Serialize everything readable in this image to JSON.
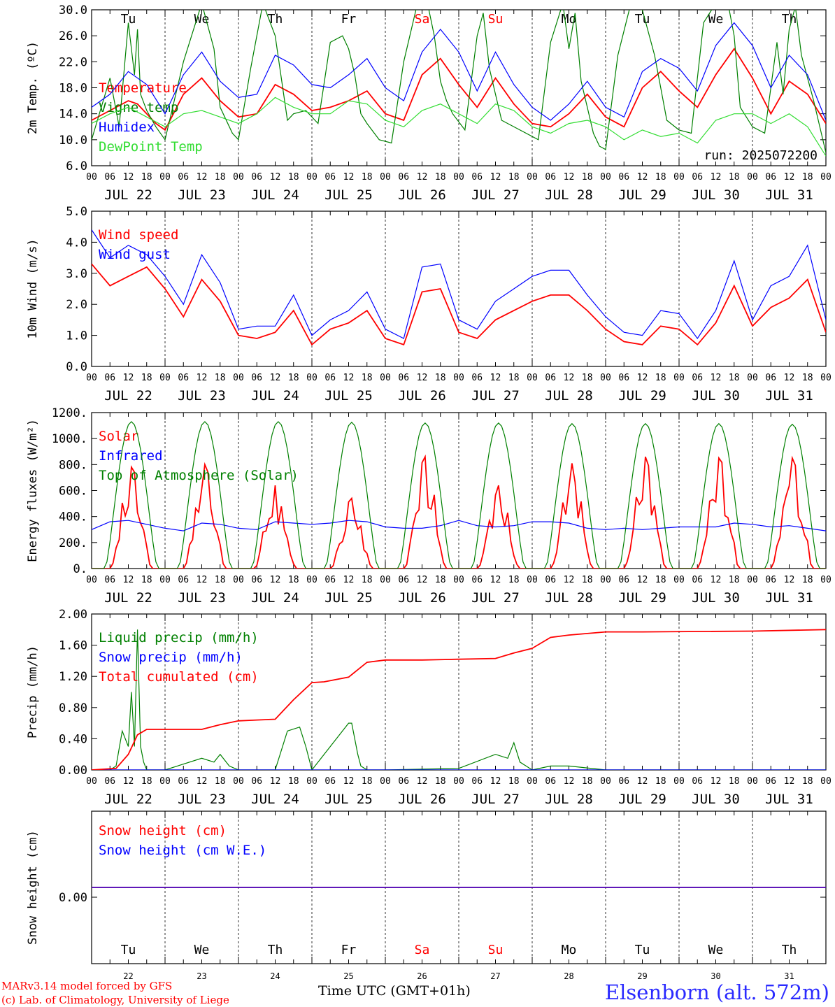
{
  "footer": {
    "model": "MARv3.14 model forced by GFS",
    "copyright": "(c) Lab. of Climatology, University of Liege",
    "time_label": "Time UTC (GMT+01h)",
    "station": "Elsenborn (alt. 572m)"
  },
  "colors": {
    "red": "#ff0000",
    "green": "#008000",
    "blue": "#0000ff",
    "lightgreen": "#33dd33",
    "weekend": "#ff0000",
    "weekday": "#000000"
  },
  "days": {
    "abbr": [
      "Tu",
      "We",
      "Th",
      "Fr",
      "Sa",
      "Su",
      "Mo",
      "Tu",
      "We",
      "Th"
    ],
    "weekend": [
      false,
      false,
      false,
      false,
      true,
      true,
      false,
      false,
      false,
      false
    ],
    "dates": [
      "JUL 22",
      "JUL 23",
      "JUL 24",
      "JUL 25",
      "JUL 26",
      "JUL 27",
      "JUL 28",
      "JUL 29",
      "JUL 30",
      "JUL 31"
    ],
    "day_numbers": [
      "22",
      "23",
      "24",
      "25",
      "26",
      "27",
      "28",
      "29",
      "30",
      "31"
    ],
    "hour_ticks": [
      "00",
      "06",
      "12",
      "18"
    ],
    "final_tick": "00"
  },
  "chart_data": [
    {
      "type": "line",
      "ylabel": "2m Temp. (ºC)",
      "ylim": [
        6.0,
        30.0
      ],
      "yticks": [
        "6.0",
        "10.0",
        "14.0",
        "18.0",
        "22.0",
        "26.0",
        "30.0"
      ],
      "annotation": "run: 2025072200",
      "x_unit": "hours since JUL 22 00 UTC",
      "series": [
        {
          "name": "Temperature",
          "color": "red",
          "x": [
            0,
            12,
            15,
            21,
            24,
            30,
            36,
            42,
            48,
            54,
            60,
            66,
            72,
            78,
            84,
            90,
            96,
            102,
            108,
            114,
            120,
            126,
            132,
            138,
            144,
            150,
            156,
            162,
            168,
            174,
            180,
            186,
            192,
            198,
            204,
            210,
            216,
            222,
            228,
            234,
            240
          ],
          "y": [
            13.0,
            16.0,
            15.5,
            12.5,
            11.5,
            17.0,
            19.5,
            16.0,
            13.5,
            14.0,
            18.5,
            17.0,
            14.5,
            15.0,
            16.0,
            17.5,
            14.0,
            13.0,
            20.0,
            22.5,
            18.5,
            15.0,
            19.5,
            15.5,
            12.5,
            12.0,
            14.0,
            17.0,
            13.5,
            12.0,
            18.0,
            20.5,
            17.5,
            15.0,
            20.0,
            24.0,
            19.5,
            14.0,
            19.0,
            17.0,
            12.5
          ]
        },
        {
          "name": "Vigne temp",
          "color": "green",
          "x": [
            0,
            6,
            9,
            12,
            14,
            15,
            16,
            18,
            21,
            24,
            30,
            36,
            40,
            42,
            46,
            48,
            52,
            56,
            60,
            64,
            66,
            70,
            74,
            78,
            82,
            84,
            86,
            88,
            90,
            94,
            98,
            102,
            106,
            110,
            112,
            114,
            116,
            118,
            122,
            126,
            128,
            130,
            132,
            134,
            136,
            140,
            146,
            150,
            154,
            156,
            158,
            160,
            162,
            164,
            166,
            168,
            172,
            176,
            180,
            184,
            186,
            188,
            192,
            196,
            200,
            204,
            208,
            210,
            212,
            216,
            220,
            224,
            226,
            228,
            230,
            232,
            236,
            240
          ],
          "y": [
            10.0,
            19.5,
            12.0,
            28.0,
            20.0,
            27.0,
            17.0,
            14.5,
            12.0,
            10.0,
            22.0,
            31.0,
            24.0,
            15.0,
            11.0,
            10.0,
            21.0,
            31.0,
            26.0,
            13.0,
            14.0,
            14.5,
            12.5,
            25.0,
            26.0,
            24.0,
            20.0,
            14.0,
            12.5,
            10.0,
            9.5,
            22.0,
            30.0,
            30.5,
            26.0,
            19.0,
            16.0,
            14.0,
            11.5,
            26.0,
            29.5,
            21.0,
            17.0,
            13.0,
            12.5,
            11.5,
            10.0,
            25.0,
            31.0,
            24.0,
            29.5,
            19.0,
            15.0,
            11.0,
            9.0,
            8.5,
            23.0,
            30.5,
            30.0,
            23.0,
            18.0,
            13.0,
            11.5,
            11.0,
            28.0,
            31.0,
            31.0,
            26.0,
            15.0,
            12.0,
            11.0,
            25.0,
            17.0,
            27.0,
            30.5,
            23.0,
            16.0,
            8.0
          ]
        },
        {
          "name": "Humidex",
          "color": "blue",
          "x": [
            0,
            6,
            12,
            18,
            24,
            30,
            36,
            42,
            48,
            54,
            60,
            66,
            72,
            78,
            84,
            90,
            96,
            102,
            108,
            114,
            120,
            126,
            132,
            138,
            144,
            150,
            156,
            162,
            168,
            174,
            180,
            186,
            192,
            198,
            204,
            210,
            216,
            222,
            228,
            234,
            240
          ],
          "y": [
            15.0,
            17.0,
            20.5,
            18.5,
            14.0,
            20.0,
            23.5,
            19.0,
            16.5,
            17.0,
            23.0,
            21.5,
            18.5,
            18.0,
            20.0,
            22.5,
            18.0,
            16.0,
            23.5,
            27.0,
            23.5,
            17.5,
            23.5,
            18.5,
            15.0,
            13.0,
            15.5,
            19.0,
            15.0,
            13.5,
            20.5,
            22.5,
            21.0,
            17.5,
            24.5,
            28.0,
            24.5,
            18.0,
            23.0,
            20.0,
            13.0
          ]
        },
        {
          "name": "DewPoint Temp",
          "color": "lightgreen",
          "x": [
            0,
            6,
            12,
            18,
            24,
            30,
            36,
            42,
            48,
            54,
            60,
            66,
            72,
            78,
            84,
            90,
            96,
            102,
            108,
            114,
            120,
            126,
            132,
            138,
            144,
            150,
            156,
            162,
            168,
            174,
            180,
            186,
            192,
            198,
            204,
            210,
            216,
            222,
            228,
            234,
            240
          ],
          "y": [
            12.5,
            14.0,
            15.0,
            13.5,
            12.0,
            14.0,
            14.5,
            13.5,
            12.5,
            14.0,
            16.5,
            15.0,
            14.0,
            14.0,
            16.0,
            15.5,
            13.0,
            12.0,
            14.5,
            15.5,
            14.0,
            12.5,
            15.5,
            14.5,
            12.0,
            11.0,
            12.5,
            13.0,
            12.0,
            10.0,
            11.5,
            10.5,
            11.0,
            9.5,
            13.0,
            14.0,
            14.0,
            12.5,
            14.0,
            12.0,
            7.5
          ]
        }
      ]
    },
    {
      "type": "line",
      "ylabel": "10m Wind (m/s)",
      "ylim": [
        0.0,
        5.0
      ],
      "yticks": [
        "0.0",
        "1.0",
        "2.0",
        "3.0",
        "4.0",
        "5.0"
      ],
      "x_unit": "hours since JUL 22 00 UTC",
      "series": [
        {
          "name": "Wind speed",
          "color": "red",
          "x": [
            0,
            6,
            12,
            18,
            24,
            30,
            36,
            42,
            48,
            54,
            60,
            66,
            72,
            78,
            84,
            90,
            96,
            102,
            108,
            114,
            120,
            126,
            132,
            138,
            144,
            150,
            156,
            162,
            168,
            174,
            180,
            186,
            192,
            198,
            204,
            210,
            216,
            222,
            228,
            234,
            240
          ],
          "y": [
            3.3,
            2.6,
            2.9,
            3.2,
            2.5,
            1.6,
            2.8,
            2.1,
            1.0,
            0.9,
            1.1,
            1.8,
            0.7,
            1.2,
            1.4,
            1.8,
            0.9,
            0.7,
            2.4,
            2.5,
            1.1,
            0.9,
            1.5,
            1.8,
            2.1,
            2.3,
            2.3,
            1.8,
            1.2,
            0.8,
            0.7,
            1.3,
            1.2,
            0.7,
            1.4,
            2.6,
            1.3,
            1.9,
            2.2,
            2.8,
            1.1
          ]
        },
        {
          "name": "Wind gust",
          "color": "blue",
          "x": [
            0,
            6,
            12,
            18,
            24,
            30,
            36,
            42,
            48,
            54,
            60,
            66,
            72,
            78,
            84,
            90,
            96,
            102,
            108,
            114,
            120,
            126,
            132,
            138,
            144,
            150,
            156,
            162,
            168,
            174,
            180,
            186,
            192,
            198,
            204,
            210,
            216,
            222,
            228,
            234,
            240
          ],
          "y": [
            4.4,
            3.5,
            3.9,
            3.6,
            2.9,
            2.0,
            3.6,
            2.7,
            1.2,
            1.3,
            1.3,
            2.3,
            1.0,
            1.5,
            1.8,
            2.4,
            1.2,
            0.9,
            3.2,
            3.3,
            1.5,
            1.2,
            2.1,
            2.5,
            2.9,
            3.1,
            3.1,
            2.3,
            1.6,
            1.1,
            1.0,
            1.8,
            1.7,
            0.9,
            1.8,
            3.4,
            1.5,
            2.6,
            2.9,
            3.9,
            1.5
          ]
        }
      ]
    },
    {
      "type": "line",
      "ylabel": "Energy fluxes (W/m²)",
      "ylim": [
        0,
        1200
      ],
      "yticks": [
        "0.",
        "200.",
        "400.",
        "600.",
        "800.",
        "1000.",
        "1200."
      ],
      "x_unit": "hours since JUL 22 00 UTC",
      "series": [
        {
          "name": "Solar",
          "color": "red",
          "peak_hours": [
            13,
            37,
            60,
            85,
            109,
            133,
            157,
            181,
            205,
            229
          ],
          "daily_peak": [
            780,
            800,
            640,
            540,
            860,
            640,
            810,
            860,
            850,
            850
          ]
        },
        {
          "name": "Infrared",
          "color": "blue",
          "x": [
            0,
            6,
            12,
            18,
            24,
            30,
            36,
            42,
            48,
            54,
            60,
            66,
            72,
            78,
            84,
            90,
            96,
            102,
            108,
            114,
            120,
            126,
            132,
            138,
            144,
            150,
            156,
            162,
            168,
            174,
            180,
            186,
            192,
            198,
            204,
            210,
            216,
            222,
            228,
            234,
            240
          ],
          "y": [
            300,
            360,
            370,
            340,
            310,
            290,
            350,
            340,
            310,
            300,
            360,
            350,
            340,
            350,
            370,
            360,
            320,
            310,
            310,
            330,
            370,
            330,
            320,
            330,
            360,
            360,
            350,
            310,
            300,
            310,
            300,
            310,
            320,
            320,
            320,
            350,
            340,
            320,
            330,
            310,
            290
          ]
        },
        {
          "name": "Top of Atmosphere (Solar)",
          "color": "green",
          "peak_hours": [
            13,
            37,
            61,
            85,
            109,
            133,
            157,
            181,
            205,
            229
          ],
          "daily_peak": [
            1130,
            1130,
            1130,
            1125,
            1120,
            1120,
            1115,
            1115,
            1115,
            1110
          ]
        }
      ]
    },
    {
      "type": "line",
      "ylabel": "Precip (mm/h)",
      "ylim": [
        0.0,
        2.0
      ],
      "yticks": [
        "0.00",
        "0.40",
        "0.80",
        "1.20",
        "1.60",
        "2.00"
      ],
      "x_unit": "hours since JUL 22 00 UTC",
      "series": [
        {
          "name": "Liquid precip (mm/h)",
          "color": "green",
          "x": [
            0,
            6,
            8,
            10,
            12,
            13,
            14,
            15,
            16,
            17,
            18,
            24,
            36,
            40,
            42,
            45,
            48,
            60,
            64,
            68,
            70,
            72,
            78,
            84,
            85,
            87,
            88,
            90,
            96,
            120,
            132,
            136,
            138,
            140,
            142,
            144,
            150,
            156,
            168,
            216,
            228,
            234,
            240
          ],
          "y": [
            0,
            0,
            0.05,
            0.5,
            0.3,
            1.0,
            0.3,
            1.8,
            0.3,
            0.1,
            0,
            0,
            0.15,
            0.1,
            0.2,
            0.05,
            0,
            0,
            0.5,
            0.55,
            0.3,
            0,
            0.3,
            0.6,
            0.6,
            0.2,
            0.05,
            0,
            0,
            0.02,
            0.2,
            0.15,
            0.35,
            0.1,
            0.05,
            0,
            0.05,
            0.05,
            0,
            0,
            0,
            0,
            0
          ]
        },
        {
          "name": "Snow precip (mm/h)",
          "color": "blue",
          "x": [
            0,
            240
          ],
          "y": [
            0,
            0
          ]
        },
        {
          "name": "Total cumulated (cm)",
          "color": "red",
          "x": [
            0,
            8,
            12,
            15,
            18,
            24,
            36,
            42,
            48,
            54,
            60,
            66,
            72,
            76,
            84,
            90,
            96,
            102,
            108,
            120,
            132,
            138,
            144,
            150,
            156,
            168,
            180,
            216,
            240
          ],
          "y": [
            0,
            0.02,
            0.2,
            0.45,
            0.52,
            0.52,
            0.52,
            0.58,
            0.63,
            0.64,
            0.65,
            0.9,
            1.12,
            1.13,
            1.19,
            1.38,
            1.41,
            1.41,
            1.41,
            1.42,
            1.43,
            1.5,
            1.56,
            1.7,
            1.73,
            1.77,
            1.77,
            1.78,
            1.8
          ]
        }
      ]
    },
    {
      "type": "line",
      "ylabel": "Snow height (cm)",
      "yticks": [
        "0.00"
      ],
      "x_unit": "hours since JUL 22 00 UTC",
      "series": [
        {
          "name": "Snow height (cm)",
          "color": "red",
          "x": [
            0,
            240
          ],
          "y": [
            0,
            0
          ]
        },
        {
          "name": "Snow height (cm W.E.)",
          "color": "blue",
          "x": [
            0,
            240
          ],
          "y": [
            0,
            0
          ]
        }
      ]
    }
  ]
}
